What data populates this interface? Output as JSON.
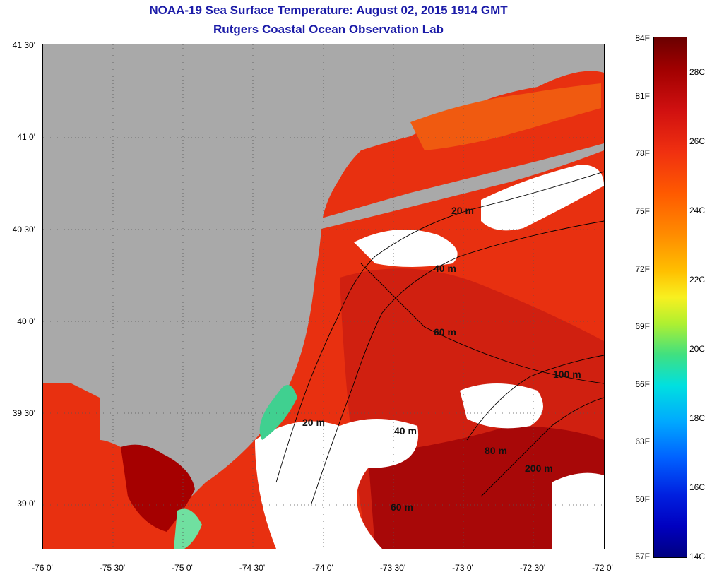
{
  "header": {
    "title": "NOAA-19 Sea Surface Temperature:  August 02, 2015 1914 GMT",
    "subtitle": "Rutgers Coastal Ocean Observation Lab"
  },
  "map": {
    "lat_ticks": [
      "41 30'",
      "41 0'",
      "40 30'",
      "40 0'",
      "39 30'",
      "39 0'"
    ],
    "lon_ticks": [
      "-76 0'",
      "-75 30'",
      "-75 0'",
      "-74 30'",
      "-74 0'",
      "-73 30'",
      "-73 0'",
      "-72 30'",
      "-72 0'"
    ],
    "contour_labels": [
      "20 m",
      "40 m",
      "60 m",
      "100 m",
      "20 m",
      "40 m",
      "80 m",
      "200 m",
      "60 m"
    ],
    "colors": {
      "land": "#a9a9a9",
      "cloud": "#ffffff",
      "warm": "#e83010",
      "hot": "#a50000"
    }
  },
  "colorbar": {
    "fahrenheit": [
      "84F",
      "81F",
      "78F",
      "75F",
      "72F",
      "69F",
      "66F",
      "63F",
      "60F",
      "57F"
    ],
    "celsius": [
      "28C",
      "26C",
      "24C",
      "22C",
      "20C",
      "18C",
      "16C",
      "14C"
    ]
  }
}
